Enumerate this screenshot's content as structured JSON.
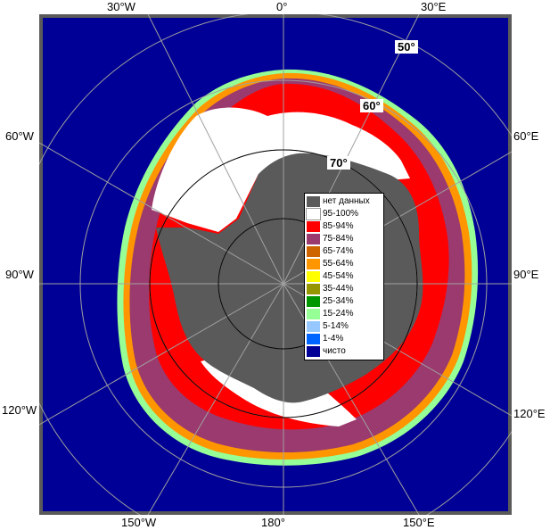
{
  "map": {
    "colors": {
      "ocean": "#000096",
      "land": "#5a5a5a",
      "frame": "#5a5a5a",
      "graticule": "#a0a0a0",
      "ice_95_100": "#ffffff",
      "ice_85_94": "#ff0000",
      "ice_75_84": "#9b3a6e"
    },
    "lon_labels": {
      "w30": "30°W",
      "zero": "0°",
      "e30": "30°E",
      "w60": "60°W",
      "e60": "60°E",
      "w90": "90°W",
      "e90": "90°E",
      "w120": "120°W",
      "e120": "120°E",
      "w150": "150°W",
      "l180": "180°",
      "e150": "150°E"
    },
    "lat_labels": {
      "l50": "50°",
      "l60": "60°",
      "l70": "70°"
    }
  },
  "legend": {
    "items": [
      {
        "label": "нет данных",
        "color": "#5a5a5a"
      },
      {
        "label": "95-100%",
        "color": "#ffffff"
      },
      {
        "label": "85-94%",
        "color": "#ff0000"
      },
      {
        "label": "75-84%",
        "color": "#9b3a6e"
      },
      {
        "label": "65-74%",
        "color": "#cd6400"
      },
      {
        "label": "55-64%",
        "color": "#ff9600"
      },
      {
        "label": "45-54%",
        "color": "#ffff00"
      },
      {
        "label": "35-44%",
        "color": "#969600"
      },
      {
        "label": "25-34%",
        "color": "#009600"
      },
      {
        "label": "15-24%",
        "color": "#96ff96"
      },
      {
        "label": "5-14%",
        "color": "#96c8ff"
      },
      {
        "label": "1-4%",
        "color": "#0064ff"
      },
      {
        "label": "чисто",
        "color": "#000096"
      }
    ]
  }
}
